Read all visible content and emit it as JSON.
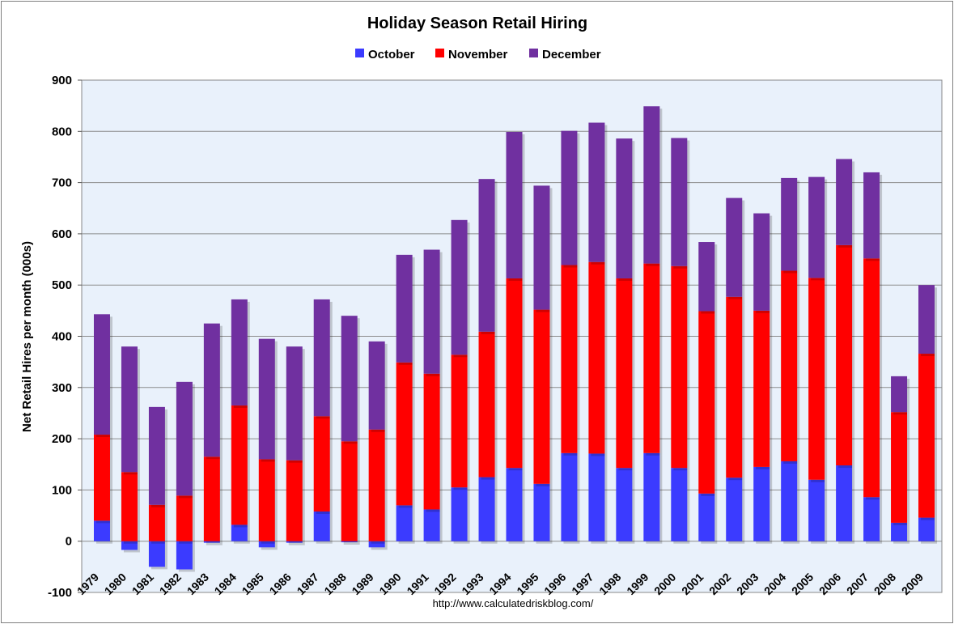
{
  "colors": {
    "october": "#3b3bff",
    "november": "#ff0000",
    "december": "#7030a0",
    "plot_bg": "#e9f1fb",
    "gridline": "#8c8c8c"
  },
  "chart_data": {
    "type": "bar",
    "stacked": true,
    "title": "Holiday Season Retail Hiring",
    "xlabel": "",
    "ylabel": "Net Retail Hires per month (000s)",
    "ylim": [
      -100,
      900
    ],
    "yticks": [
      -100,
      0,
      100,
      200,
      300,
      400,
      500,
      600,
      700,
      800,
      900
    ],
    "grid": true,
    "legend_position": "top-center",
    "source": "http://www.calculatedriskblog.com/",
    "categories": [
      "1979",
      "1980",
      "1981",
      "1982",
      "1983",
      "1984",
      "1985",
      "1986",
      "1987",
      "1988",
      "1989",
      "1990",
      "1991",
      "1992",
      "1993",
      "1994",
      "1995",
      "1996",
      "1997",
      "1998",
      "1999",
      "2000",
      "2001",
      "2002",
      "2003",
      "2004",
      "2005",
      "2006",
      "2007",
      "2008",
      "2009"
    ],
    "series": [
      {
        "name": "October",
        "values": [
          40,
          -17,
          -50,
          -55,
          -3,
          32,
          -12,
          -3,
          58,
          -2,
          -12,
          70,
          62,
          105,
          125,
          143,
          112,
          172,
          171,
          143,
          172,
          143,
          93,
          124,
          145,
          156,
          120,
          148,
          86,
          36,
          46
        ]
      },
      {
        "name": "November",
        "values": [
          168,
          135,
          71,
          89,
          165,
          233,
          160,
          158,
          186,
          195,
          218,
          279,
          265,
          259,
          284,
          370,
          340,
          367,
          374,
          370,
          370,
          394,
          356,
          353,
          305,
          372,
          394,
          430,
          466,
          216,
          320
        ]
      },
      {
        "name": "December",
        "values": [
          235,
          245,
          191,
          222,
          260,
          207,
          235,
          222,
          228,
          245,
          172,
          210,
          242,
          263,
          298,
          286,
          242,
          262,
          272,
          273,
          307,
          250,
          135,
          193,
          190,
          181,
          197,
          168,
          168,
          70,
          134
        ]
      }
    ]
  }
}
